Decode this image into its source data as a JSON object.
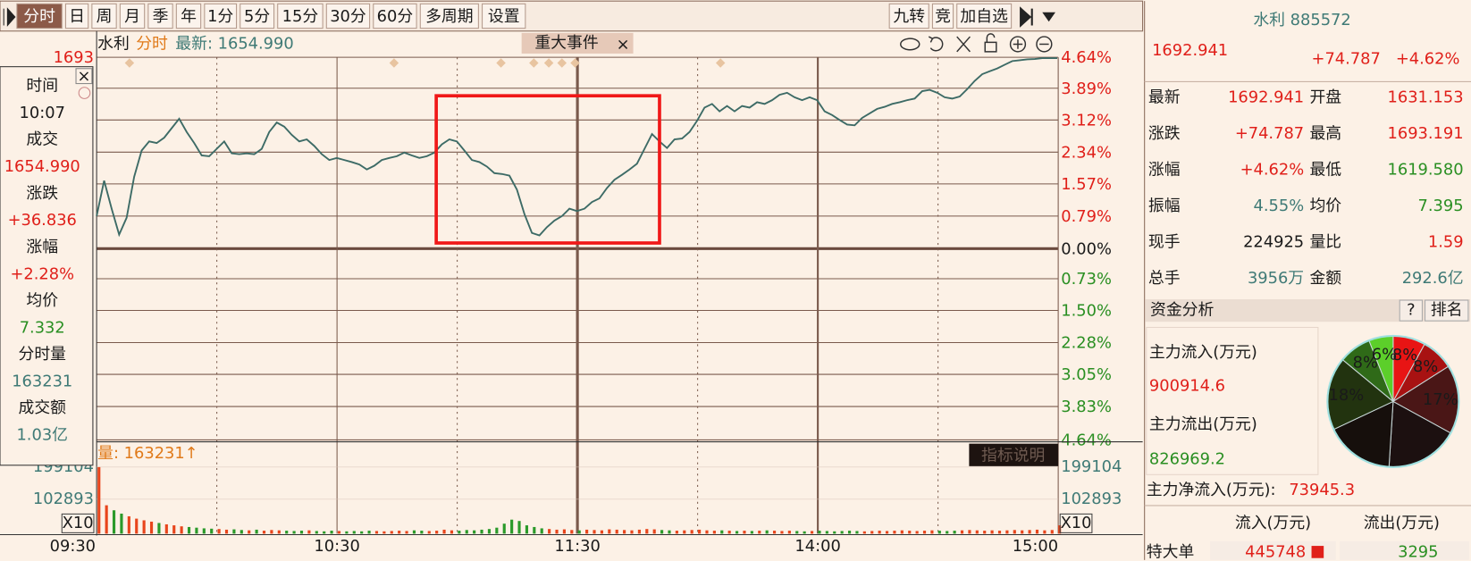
{
  "toolbar": {
    "periods": [
      "分时",
      "日",
      "周",
      "月",
      "季",
      "年",
      "1分",
      "5分",
      "15分",
      "30分",
      "60分",
      "多周期",
      "设置"
    ],
    "right": [
      "九转",
      "竞",
      "加自选"
    ]
  },
  "chart": {
    "name": "水利",
    "mode": "分时",
    "latest": "最新: 1654.990",
    "event_tab": "重大事件",
    "price_top": "1693",
    "ylim": [
      -4.64,
      4.64
    ],
    "yticks": [
      {
        "value": 4.64,
        "label": "4.64%"
      },
      {
        "value": 3.89,
        "label": "3.89%"
      },
      {
        "value": 3.12,
        "label": "3.12%"
      },
      {
        "value": 2.34,
        "label": "2.34%"
      },
      {
        "value": 1.57,
        "label": "1.57%"
      },
      {
        "value": 0.79,
        "label": "0.79%"
      },
      {
        "value": 0,
        "label": "0.00%"
      },
      {
        "value": -0.73,
        "label": "0.73%"
      },
      {
        "value": -1.5,
        "label": "1.50%"
      },
      {
        "value": -2.28,
        "label": "2.28%"
      },
      {
        "value": -3.05,
        "label": "3.05%"
      },
      {
        "value": -3.83,
        "label": "3.83%"
      },
      {
        "value": -4.64,
        "label": "4.64%"
      }
    ],
    "xticks": [
      "09:30",
      "10:30",
      "11:30",
      "14:00",
      "15:00"
    ],
    "line": {
      "color": "#3d6b66",
      "values": [
        0.79,
        1.65,
        0.97,
        0.34,
        0.75,
        1.74,
        2.38,
        2.6,
        2.56,
        2.69,
        2.92,
        3.15,
        2.83,
        2.56,
        2.26,
        2.24,
        2.42,
        2.6,
        2.31,
        2.29,
        2.31,
        2.29,
        2.42,
        2.83,
        3.06,
        2.96,
        2.76,
        2.6,
        2.65,
        2.49,
        2.29,
        2.15,
        2.2,
        2.15,
        2.1,
        2.04,
        1.92,
        2.01,
        2.15,
        2.2,
        2.24,
        2.33,
        2.26,
        2.2,
        2.24,
        2.33,
        2.53,
        2.65,
        2.6,
        2.38,
        2.15,
        2.1,
        1.99,
        1.83,
        1.81,
        1.77,
        1.43,
        0.84,
        0.38,
        0.32,
        0.52,
        0.68,
        0.79,
        0.97,
        0.91,
        0.97,
        1.13,
        1.22,
        1.47,
        1.67,
        1.79,
        1.92,
        2.06,
        2.42,
        2.78,
        2.6,
        2.44,
        2.65,
        2.67,
        2.83,
        3.1,
        3.42,
        3.51,
        3.33,
        3.46,
        3.33,
        3.46,
        3.42,
        3.55,
        3.51,
        3.6,
        3.73,
        3.78,
        3.67,
        3.6,
        3.67,
        3.6,
        3.33,
        3.24,
        3.12,
        3.01,
        2.99,
        3.17,
        3.28,
        3.39,
        3.44,
        3.51,
        3.55,
        3.6,
        3.64,
        3.82,
        3.85,
        3.78,
        3.67,
        3.64,
        3.69,
        3.87,
        4.07,
        4.23,
        4.3,
        4.37,
        4.46,
        4.55,
        4.57,
        4.59,
        4.6,
        4.62,
        4.62,
        4.62
      ]
    },
    "volume": {
      "label": "量: 163231↑",
      "button": "指标说明",
      "scale": "X10",
      "ylim": [
        0,
        199104
      ],
      "yticks": [
        102893,
        199104
      ],
      "up_color": "#e8451c",
      "down_color": "#2a9a2a",
      "values": [
        199104,
        85000,
        70000,
        60000,
        52000,
        45000,
        40000,
        36000,
        32000,
        28000,
        25000,
        22000,
        20000,
        18000,
        16000,
        15000,
        14000,
        12000,
        13000,
        11000,
        10000,
        12000,
        9000,
        11000,
        10000,
        9000,
        8000,
        9000,
        10000,
        8000,
        7000,
        9000,
        8000,
        7000,
        8000,
        7000,
        9000,
        8000,
        7000,
        8000,
        9000,
        8000,
        10000,
        9000,
        8000,
        9000,
        12000,
        10000,
        9000,
        11000,
        10000,
        12000,
        14000,
        18000,
        30000,
        42000,
        38000,
        25000,
        20000,
        16000,
        14000,
        12000,
        13000,
        11000,
        10000,
        12000,
        11000,
        10000,
        13000,
        12000,
        11000,
        10000,
        12000,
        14000,
        13000,
        11000,
        10000,
        9000,
        10000,
        11000,
        12000,
        10000,
        9000,
        10000,
        9000,
        8000,
        9000,
        8000,
        9000,
        10000,
        9000,
        8000,
        9000,
        8000,
        7000,
        8000,
        9000,
        8000,
        7000,
        8000,
        9000,
        8000,
        7000,
        8000,
        9000,
        8000,
        9000,
        10000,
        9000,
        8000,
        9000,
        10000,
        9000,
        8000,
        9000,
        10000,
        11000,
        10000,
        9000,
        10000,
        9000,
        10000,
        11000,
        10000,
        11000,
        12000,
        10000,
        11000,
        25000
      ]
    }
  },
  "info_panel": {
    "items": [
      {
        "label": "时间",
        "value": "10:07"
      },
      {
        "label": "成交",
        "value": "1654.990"
      },
      {
        "label": "涨跌",
        "value": "+36.836"
      },
      {
        "label": "涨幅",
        "value": "+2.28%"
      },
      {
        "label": "均价",
        "value": "7.332"
      },
      {
        "label": "分时量",
        "value": "163231"
      },
      {
        "label": "成交额",
        "value": "1.03亿"
      }
    ]
  },
  "quote": {
    "title": "水利 885572",
    "price": "1692.941",
    "change": "+74.787",
    "pct": "+4.62%",
    "rows": [
      [
        "最新",
        "1692.941",
        "开盘",
        "1631.153"
      ],
      [
        "涨跌",
        "+74.787",
        "最高",
        "1693.191"
      ],
      [
        "涨幅",
        "+4.62%",
        "最低",
        "1619.580"
      ],
      [
        "振幅",
        "4.55%",
        "均价",
        "7.395"
      ],
      [
        "现手",
        "224925",
        "量比",
        "1.59"
      ],
      [
        "总手",
        "3956万",
        "金额",
        "292.6亿"
      ]
    ]
  },
  "fund": {
    "title": "资金分析",
    "help": "?",
    "rank": "排名",
    "inflow_label": "主力流入(万元)",
    "inflow": "900914.6",
    "outflow_label": "主力流出(万元)",
    "outflow": "826969.2",
    "net_label": "主力净流入(万元):",
    "net": "73945.3",
    "pie": {
      "values": [
        8,
        8,
        17,
        18,
        17,
        18,
        8,
        6
      ],
      "value_labels": [
        "8%",
        "8%",
        "17%",
        null,
        null,
        "18%",
        "8%",
        "6%"
      ],
      "colors": [
        "#e81414",
        "#a81212",
        "#4a1616",
        "#1c1010",
        "#160f0c",
        "#22330f",
        "#2f6a18",
        "#5ccf2a"
      ]
    },
    "headers": [
      "流入(万元)",
      "流出(万元)"
    ],
    "row_label": "特大单",
    "row_in": "445748",
    "row_out": "3295"
  }
}
